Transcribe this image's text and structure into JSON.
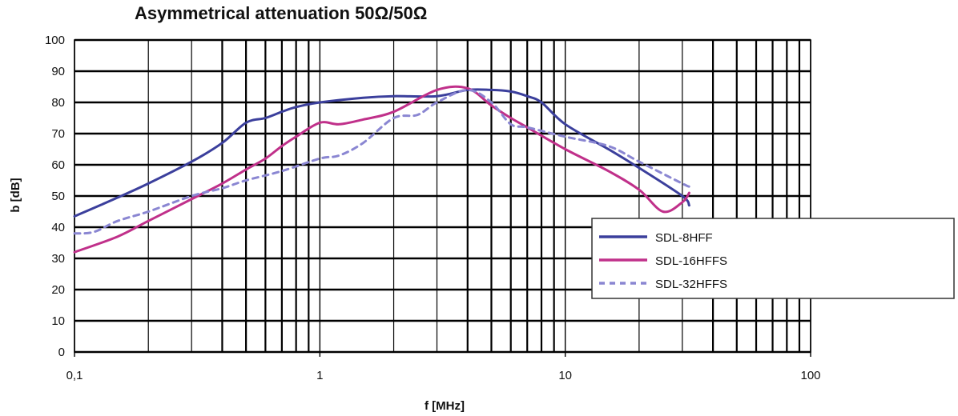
{
  "chart_data": {
    "type": "line",
    "title": "Asymmetrical attenuation 50Ω/50Ω",
    "xlabel": "f [MHz]",
    "ylabel": "b [dB]",
    "xscale": "log",
    "xlim": [
      0.1,
      100
    ],
    "ylim": [
      0,
      100
    ],
    "xticks": [
      0.1,
      1,
      10,
      100
    ],
    "xtick_labels": [
      "0,1",
      "1",
      "10",
      "100"
    ],
    "yticks": [
      0,
      10,
      20,
      30,
      40,
      50,
      60,
      70,
      80,
      90,
      100
    ],
    "grid": true,
    "legend_position": "right",
    "series": [
      {
        "name": "SDL-8HFF",
        "color": "#3b3f9c",
        "style": "solid",
        "x": [
          0.1,
          0.15,
          0.2,
          0.3,
          0.4,
          0.5,
          0.6,
          0.7,
          0.8,
          1.0,
          1.5,
          2.0,
          3.0,
          4.0,
          5.0,
          6.0,
          7.0,
          8.0,
          10.0,
          15.0,
          20.0,
          30.0,
          32.0
        ],
        "y": [
          43.5,
          49.5,
          54,
          61,
          67,
          73.5,
          75,
          77,
          78.5,
          80,
          81.5,
          82,
          82,
          84,
          84,
          83.5,
          82,
          80,
          73,
          65,
          59,
          50,
          47
        ]
      },
      {
        "name": "SDL-16HFFS",
        "color": "#c0308a",
        "style": "solid",
        "x": [
          0.1,
          0.15,
          0.2,
          0.3,
          0.4,
          0.5,
          0.6,
          0.7,
          0.8,
          1.0,
          1.2,
          1.5,
          2.0,
          3.0,
          4.0,
          5.0,
          6.0,
          7.0,
          10.0,
          15.0,
          20.0,
          25.0,
          30.0,
          32.0
        ],
        "y": [
          32,
          37,
          42,
          49,
          54,
          58.5,
          62,
          66,
          69,
          73.5,
          73,
          74.5,
          77,
          84,
          84.5,
          79,
          75,
          72,
          65,
          58,
          52,
          45,
          48,
          51
        ]
      },
      {
        "name": "SDL-32HFFS",
        "color": "#8a86d2",
        "style": "dashed",
        "x": [
          0.1,
          0.12,
          0.15,
          0.2,
          0.3,
          0.4,
          0.5,
          0.7,
          1.0,
          1.2,
          1.5,
          2.0,
          2.5,
          3.0,
          4.0,
          5.0,
          6.0,
          7.0,
          10.0,
          15.0,
          20.0,
          30.0,
          32.0
        ],
        "y": [
          38,
          38.5,
          42,
          45,
          50,
          52.5,
          55,
          58,
          62,
          63,
          67,
          75,
          76,
          80,
          84,
          80,
          73,
          72,
          69,
          66,
          61,
          54,
          53
        ]
      }
    ]
  }
}
